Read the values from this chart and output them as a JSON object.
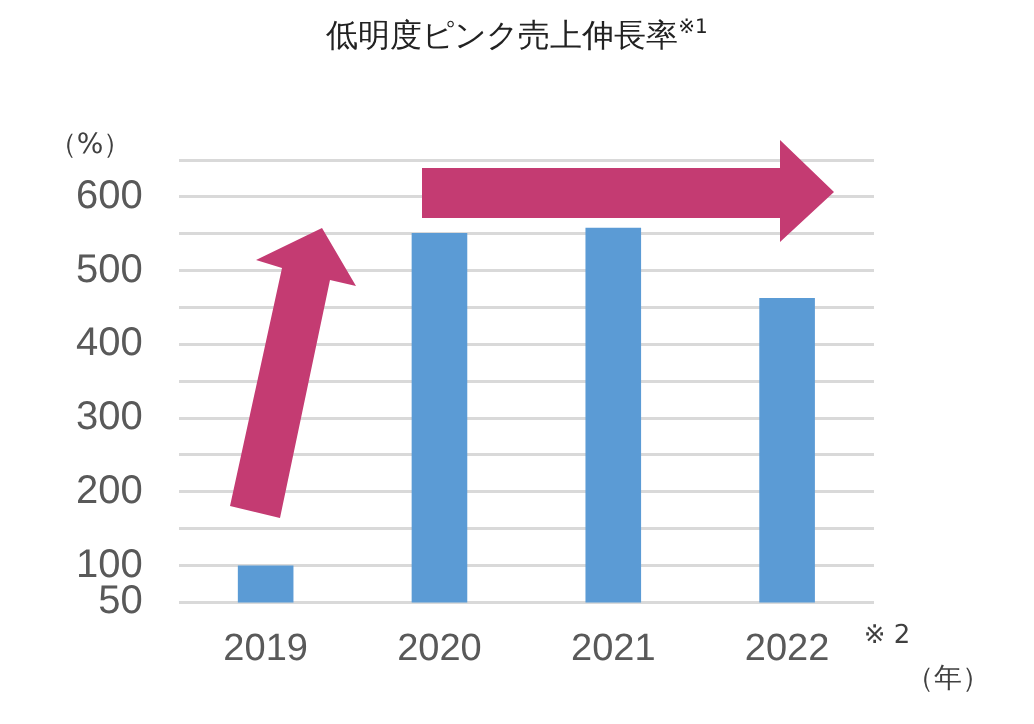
{
  "chart_data": {
    "type": "bar",
    "title": "低明度ピンク売上伸長率$^{※1}$",
    "xlabel": "（年）",
    "ylabel": "（%）",
    "categories": [
      "2019",
      "2020",
      "2021",
      "2022"
    ],
    "values": [
      100,
      551,
      558,
      463
    ],
    "color": "#5b9bd5",
    "ylim": [
      50,
      650
    ],
    "yticks": [
      50,
      100,
      {
        "value": 150,
        "label": null
      },
      200,
      {
        "value": 250,
        "label": null
      },
      300,
      {
        "value": 350,
        "label": null
      },
      400,
      {
        "value": 450,
        "label": null
      },
      500,
      {
        "value": 550,
        "label": null
      },
      600,
      {
        "value": 650,
        "label": null
      }
    ],
    "grid": "y",
    "legend": false,
    "annotations": [
      {
        "text": "※ 2",
        "x": "2022"
      }
    ]
  }
}
